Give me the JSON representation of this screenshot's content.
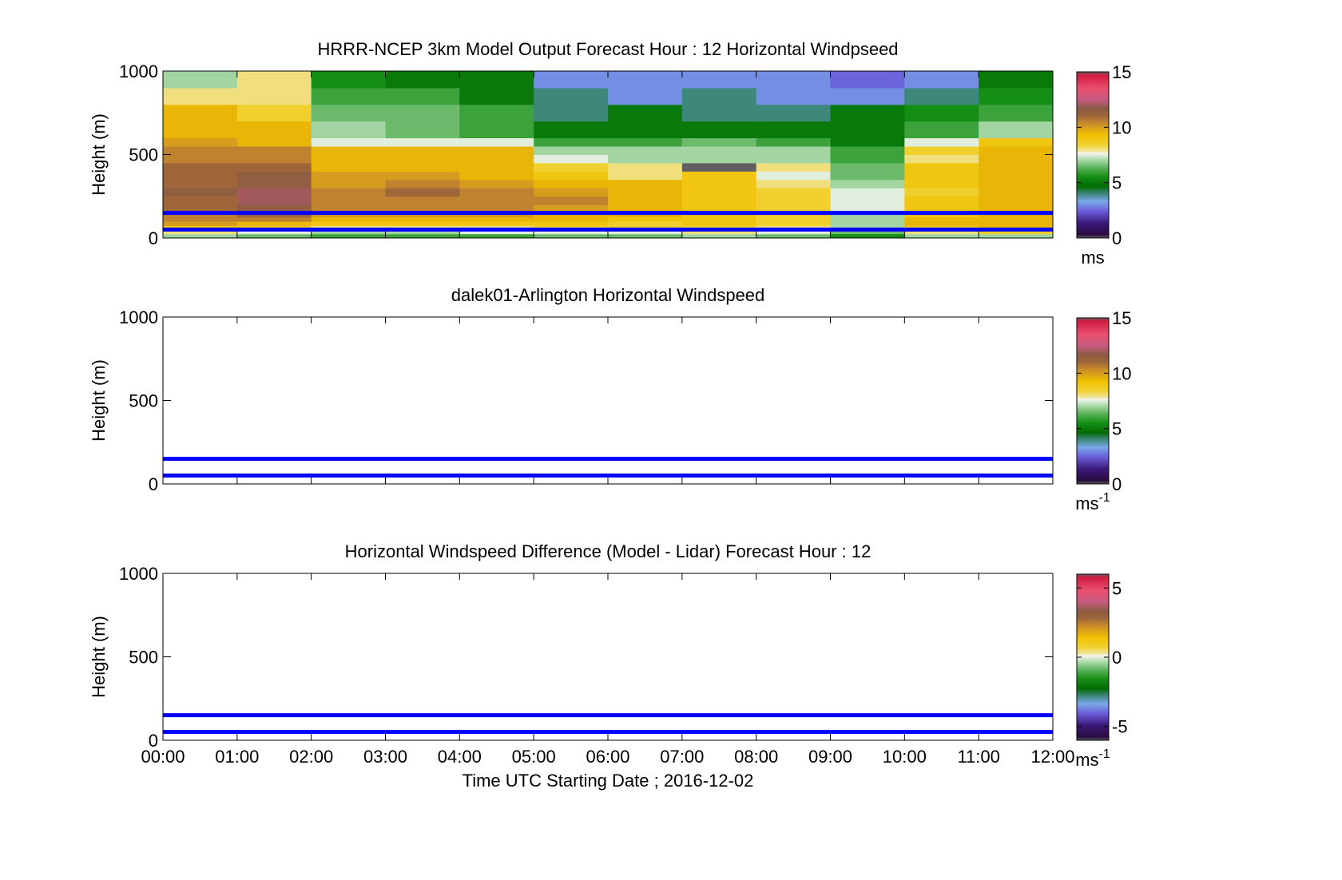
{
  "colors": {
    "background": "#ffffff",
    "line_marker": "#0000ff",
    "axis": "#000000"
  },
  "colormap_stops": [
    [
      "#606060",
      0.0
    ],
    [
      "#2a0b3f",
      0.02
    ],
    [
      "#3a1a7a",
      0.09
    ],
    [
      "#6a5bd8",
      0.16
    ],
    [
      "#78a8e8",
      0.22
    ],
    [
      "#2e7d5c",
      0.28
    ],
    [
      "#006c00",
      0.31
    ],
    [
      "#169016",
      0.37
    ],
    [
      "#56b056",
      0.42
    ],
    [
      "#a8d8a8",
      0.47
    ],
    [
      "#f5f5ee",
      0.51
    ],
    [
      "#f1e6a2",
      0.52
    ],
    [
      "#f0d232",
      0.56
    ],
    [
      "#f0c000",
      0.62
    ],
    [
      "#c98a2c",
      0.69
    ],
    [
      "#a06838",
      0.73
    ],
    [
      "#8c5a44",
      0.78
    ],
    [
      "#c45a80",
      0.83
    ],
    [
      "#ea4f70",
      0.9
    ],
    [
      "#d01c40",
      0.98
    ],
    [
      "#606060",
      1.0
    ]
  ],
  "chart_data": [
    {
      "type": "heatmap",
      "title": "HRRR-NCEP 3km Model Output   Forecast Hour : 12 Horizontal Windpseed",
      "xlabel": "",
      "ylabel": "Height (m)",
      "ylim": [
        0,
        1000
      ],
      "yticks": [
        "0",
        "500",
        "1000"
      ],
      "x_ticks": [
        "00:00",
        "01:00",
        "02:00",
        "03:00",
        "04:00",
        "05:00",
        "06:00",
        "07:00",
        "08:00",
        "09:00",
        "10:00",
        "11:00",
        "12:00"
      ],
      "show_x_tick_labels": false,
      "clim": [
        0,
        15
      ],
      "colorbar_ticks": [
        "0",
        "5",
        "10",
        "15"
      ],
      "colorbar_label": "ms",
      "colorbar_label_sup": "",
      "height_bins": [
        [
          0,
          25
        ],
        [
          25,
          50
        ],
        [
          50,
          75
        ],
        [
          75,
          100
        ],
        [
          100,
          125
        ],
        [
          125,
          150
        ],
        [
          150,
          200
        ],
        [
          200,
          250
        ],
        [
          250,
          300
        ],
        [
          300,
          350
        ],
        [
          350,
          400
        ],
        [
          400,
          450
        ],
        [
          450,
          500
        ],
        [
          500,
          550
        ],
        [
          550,
          600
        ],
        [
          600,
          700
        ],
        [
          700,
          800
        ],
        [
          800,
          900
        ],
        [
          900,
          1000
        ]
      ],
      "hour_columns": [
        "00:00",
        "01:00",
        "02:00",
        "03:00",
        "04:00",
        "05:00",
        "06:00",
        "07:00",
        "08:00",
        "09:00",
        "10:00",
        "11:00"
      ],
      "values": [
        [
          7.0,
          6.5,
          6.0,
          6.0,
          6.0,
          6.5,
          6.5,
          7.0,
          6.5,
          5.5,
          7.0,
          7.0
        ],
        [
          8.0,
          7.5,
          7.0,
          7.0,
          7.5,
          7.5,
          7.5,
          8.0,
          7.5,
          6.5,
          8.0,
          8.5
        ],
        [
          9.0,
          9.0,
          8.0,
          8.0,
          8.0,
          8.5,
          8.5,
          8.5,
          8.0,
          7.0,
          9.0,
          9.5
        ],
        [
          10.0,
          9.5,
          9.0,
          9.0,
          9.0,
          9.0,
          8.5,
          9.0,
          8.5,
          7.0,
          9.5,
          9.5
        ],
        [
          10.5,
          10.5,
          9.5,
          9.5,
          9.5,
          9.5,
          9.0,
          9.0,
          8.5,
          7.0,
          9.5,
          9.5
        ],
        [
          10.5,
          11.0,
          10.0,
          10.0,
          10.0,
          9.5,
          9.5,
          9.0,
          8.5,
          7.0,
          9.0,
          9.5
        ],
        [
          11.0,
          11.5,
          10.5,
          10.5,
          10.5,
          10.0,
          9.5,
          9.0,
          8.5,
          7.5,
          9.0,
          9.5
        ],
        [
          11.0,
          12.0,
          10.5,
          10.5,
          10.5,
          10.5,
          9.5,
          9.0,
          8.5,
          7.5,
          9.0,
          9.5
        ],
        [
          11.5,
          12.0,
          10.5,
          11.0,
          10.5,
          10.0,
          9.5,
          9.0,
          8.5,
          7.5,
          8.5,
          9.5
        ],
        [
          11.0,
          11.5,
          10.0,
          10.5,
          10.0,
          9.5,
          9.5,
          9.0,
          8.0,
          7.0,
          9.0,
          9.5
        ],
        [
          11.0,
          11.5,
          10.0,
          10.0,
          9.5,
          9.0,
          8.0,
          9.0,
          7.5,
          6.5,
          9.0,
          9.5
        ],
        [
          11.0,
          11.0,
          9.5,
          9.5,
          9.5,
          8.5,
          8.0,
          15.0,
          8.0,
          6.5,
          9.0,
          9.5
        ],
        [
          10.5,
          10.5,
          9.5,
          9.5,
          9.5,
          7.5,
          7.0,
          7.0,
          7.0,
          6.0,
          8.0,
          9.5
        ],
        [
          10.5,
          10.5,
          9.5,
          9.5,
          9.5,
          7.0,
          7.0,
          7.0,
          7.0,
          6.0,
          8.5,
          9.5
        ],
        [
          10.0,
          9.5,
          7.5,
          7.5,
          7.5,
          6.0,
          6.0,
          6.5,
          6.0,
          5.0,
          7.5,
          9.0
        ],
        [
          9.5,
          9.5,
          7.0,
          6.5,
          6.0,
          5.0,
          5.0,
          5.0,
          5.0,
          5.0,
          6.0,
          7.0
        ],
        [
          9.5,
          8.5,
          6.5,
          6.5,
          6.0,
          4.0,
          5.0,
          4.0,
          4.0,
          5.0,
          5.5,
          6.0
        ],
        [
          8.0,
          8.0,
          6.0,
          6.0,
          5.0,
          4.0,
          3.0,
          4.0,
          3.0,
          3.0,
          4.0,
          5.5
        ],
        [
          7.0,
          8.0,
          5.5,
          5.0,
          5.0,
          3.0,
          3.0,
          3.0,
          3.0,
          2.5,
          3.0,
          5.0
        ]
      ],
      "reference_lines_m": [
        50,
        150
      ]
    },
    {
      "type": "heatmap",
      "title": "dalek01-Arlington  Horizontal Windspeed",
      "xlabel": "",
      "ylabel": "Height (m)",
      "ylim": [
        0,
        1000
      ],
      "yticks": [
        "0",
        "500",
        "1000"
      ],
      "x_ticks": [
        "00:00",
        "01:00",
        "02:00",
        "03:00",
        "04:00",
        "05:00",
        "06:00",
        "07:00",
        "08:00",
        "09:00",
        "10:00",
        "11:00",
        "12:00"
      ],
      "show_x_tick_labels": false,
      "clim": [
        0,
        15
      ],
      "colorbar_ticks": [
        "0",
        "5",
        "10",
        "15"
      ],
      "colorbar_label": "ms",
      "colorbar_label_sup": "-1",
      "values": [],
      "reference_lines_m": [
        50,
        150
      ]
    },
    {
      "type": "heatmap",
      "title": "Horizontal Windspeed Difference (Model - Lidar) Forecast Hour : 12",
      "xlabel": "Time UTC  Starting Date ; 2016-12-02",
      "ylabel": "Height (m)",
      "ylim": [
        0,
        1000
      ],
      "yticks": [
        "0",
        "500",
        "1000"
      ],
      "x_ticks": [
        "00:00",
        "01:00",
        "02:00",
        "03:00",
        "04:00",
        "05:00",
        "06:00",
        "07:00",
        "08:00",
        "09:00",
        "10:00",
        "11:00",
        "12:00"
      ],
      "show_x_tick_labels": true,
      "clim": [
        -6,
        6
      ],
      "colorbar_ticks": [
        "-5",
        "0",
        "5"
      ],
      "colorbar_label": "ms",
      "colorbar_label_sup": "-1",
      "values": [],
      "reference_lines_m": [
        50,
        150
      ]
    }
  ]
}
